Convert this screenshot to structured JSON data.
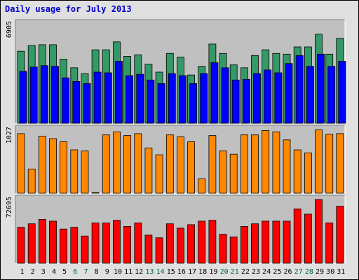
{
  "page": {
    "title": "Daily usage for July 2013"
  },
  "colors": {
    "frame_bg": "#e0e0e0",
    "plot_bg": "#c0c0c0",
    "pages": "#339966",
    "files": "#0000ff",
    "visits": "#ff8800",
    "kbytes": "#ff0000",
    "weekday_label": "#000000",
    "weekend_label": "#006633"
  },
  "chart_data": [
    {
      "type": "bar",
      "panel": "top",
      "ymax_label": "6905",
      "ylim": [
        0,
        6905
      ],
      "categories": [
        "1",
        "2",
        "3",
        "4",
        "5",
        "6",
        "7",
        "8",
        "9",
        "10",
        "11",
        "12",
        "13",
        "14",
        "15",
        "16",
        "17",
        "18",
        "19",
        "20",
        "21",
        "22",
        "23",
        "24",
        "25",
        "26",
        "27",
        "28",
        "29",
        "30",
        "31"
      ],
      "weekend_days": [
        6,
        7,
        13,
        14,
        20,
        21,
        27,
        28
      ],
      "series": [
        {
          "color_key": "pages",
          "values": [
            5000,
            5400,
            5450,
            5450,
            4450,
            3850,
            3450,
            5100,
            5100,
            5650,
            4650,
            4750,
            4100,
            3550,
            4850,
            4600,
            3350,
            3950,
            5500,
            4850,
            4050,
            3850,
            4700,
            5100,
            4850,
            4800,
            5300,
            5300,
            6180,
            4800,
            5900
          ]
        },
        {
          "color_key": "files",
          "values": [
            3600,
            3900,
            4000,
            3950,
            3150,
            2900,
            2750,
            3550,
            3500,
            4300,
            3300,
            3400,
            3000,
            2750,
            3450,
            3300,
            2750,
            3450,
            4200,
            3850,
            3000,
            3050,
            3450,
            3700,
            3500,
            4150,
            4700,
            3950,
            4800,
            3950,
            4300
          ]
        }
      ]
    },
    {
      "type": "bar",
      "panel": "middle",
      "ymax_label": "1027",
      "ylim": [
        0,
        1027
      ],
      "series": [
        {
          "color_key": "visits",
          "values": [
            960,
            390,
            920,
            880,
            830,
            700,
            680,
            10,
            940,
            990,
            930,
            960,
            730,
            620,
            940,
            910,
            830,
            230,
            930,
            680,
            630,
            940,
            940,
            1010,
            990,
            860,
            700,
            650,
            1020,
            950,
            960
          ]
        }
      ]
    },
    {
      "type": "bar",
      "panel": "bottom",
      "ymax_label": "72695",
      "ylim": [
        0,
        72695
      ],
      "series": [
        {
          "color_key": "kbytes",
          "values": [
            41000,
            45000,
            50000,
            48000,
            39000,
            41000,
            31000,
            46000,
            46000,
            49000,
            42000,
            46000,
            32000,
            29000,
            45000,
            40000,
            44000,
            48000,
            49000,
            33000,
            30000,
            42000,
            45000,
            48000,
            48000,
            48000,
            62000,
            56000,
            74000,
            46000,
            65000
          ]
        }
      ]
    }
  ]
}
